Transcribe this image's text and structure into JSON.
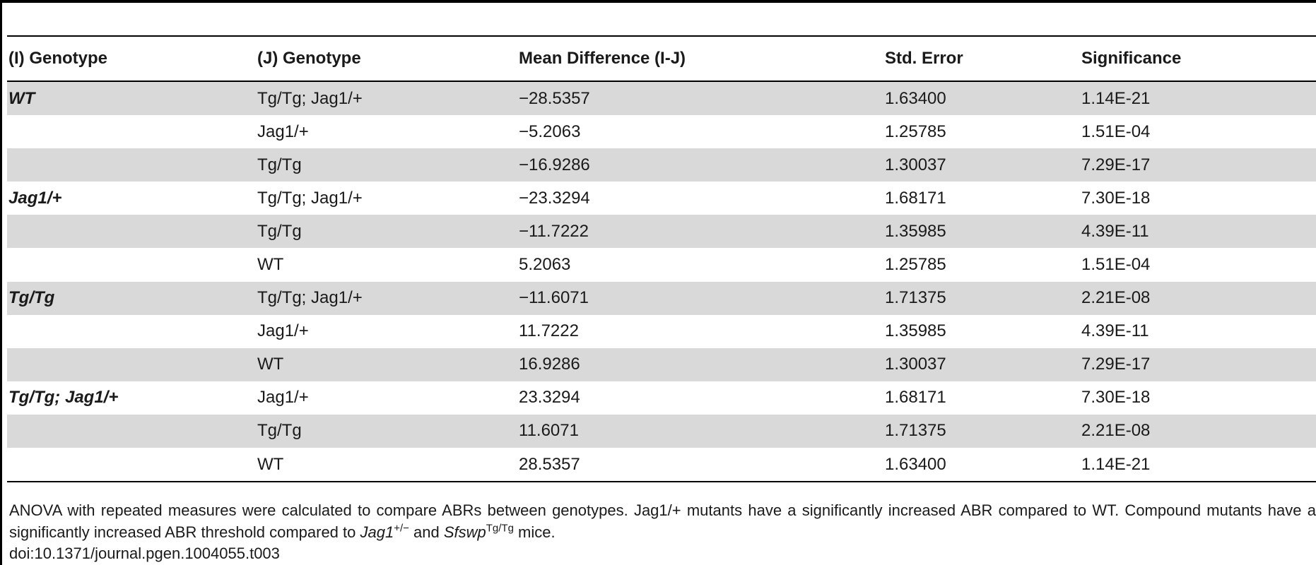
{
  "table": {
    "headers": [
      "(I) Genotype",
      "(J) Genotype",
      "Mean Difference (I-J)",
      "Std. Error",
      "Significance"
    ],
    "rows": [
      {
        "i": "WT",
        "j": "Tg/Tg; Jag1/+",
        "mean_diff": "−28.5357",
        "std_error": "1.63400",
        "significance": "1.14E-21"
      },
      {
        "i": "",
        "j": "Jag1/+",
        "mean_diff": "−5.2063",
        "std_error": "1.25785",
        "significance": "1.51E-04"
      },
      {
        "i": "",
        "j": "Tg/Tg",
        "mean_diff": "−16.9286",
        "std_error": "1.30037",
        "significance": "7.29E-17"
      },
      {
        "i": "Jag1/+",
        "j": "Tg/Tg; Jag1/+",
        "mean_diff": "−23.3294",
        "std_error": "1.68171",
        "significance": "7.30E-18"
      },
      {
        "i": "",
        "j": "Tg/Tg",
        "mean_diff": "−11.7222",
        "std_error": "1.35985",
        "significance": "4.39E-11"
      },
      {
        "i": "",
        "j": "WT",
        "mean_diff": "5.2063",
        "std_error": "1.25785",
        "significance": "1.51E-04"
      },
      {
        "i": "Tg/Tg",
        "j": "Tg/Tg; Jag1/+",
        "mean_diff": "−11.6071",
        "std_error": "1.71375",
        "significance": "2.21E-08"
      },
      {
        "i": "",
        "j": "Jag1/+",
        "mean_diff": "11.7222",
        "std_error": "1.35985",
        "significance": "4.39E-11"
      },
      {
        "i": "",
        "j": "WT",
        "mean_diff": "16.9286",
        "std_error": "1.30037",
        "significance": "7.29E-17"
      },
      {
        "i": "Tg/Tg; Jag1/+",
        "j": "Jag1/+",
        "mean_diff": "23.3294",
        "std_error": "1.68171",
        "significance": "7.30E-18"
      },
      {
        "i": "",
        "j": "Tg/Tg",
        "mean_diff": "11.6071",
        "std_error": "1.71375",
        "significance": "2.21E-08"
      },
      {
        "i": "",
        "j": "WT",
        "mean_diff": "28.5357",
        "std_error": "1.63400",
        "significance": "1.14E-21"
      }
    ]
  },
  "footnote": {
    "part1": "ANOVA with repeated measures were calculated to compare ABRs between genotypes. Jag1/+ mutants have a significantly increased ABR compared to WT. Compound mutants have a significantly increased ABR threshold compared to ",
    "gene1": "Jag1",
    "gene1_sup": "+/−",
    "part2": " and ",
    "gene2": "Sfswp",
    "gene2_sup": "Tg/Tg",
    "part3": " mice."
  },
  "doi": "doi:10.1371/journal.pgen.1004055.t003"
}
